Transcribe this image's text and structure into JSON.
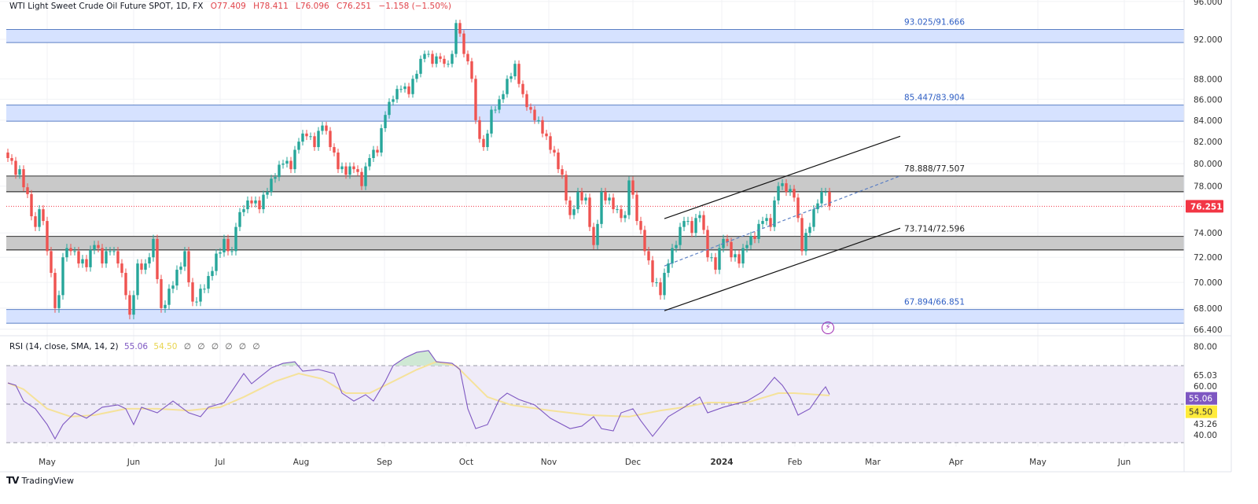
{
  "header": {
    "symbol": "WTI Light Sweet Crude Oil Future SPOT, 1D, FX",
    "open": "O77.409",
    "high": "H78.411",
    "low": "L76.096",
    "close": "C76.251",
    "change": "−1.158 (−1.50%)"
  },
  "rsi_header": {
    "label": "RSI (14, close, SMA, 14, 2)",
    "rsi": "55.06",
    "sma": "54.50",
    "placeholders": [
      "∅",
      "∅",
      "∅",
      "∅",
      "∅",
      "∅"
    ]
  },
  "branding": {
    "logo_mark": "TV",
    "name": "TradingView"
  },
  "colors": {
    "up": "#26a69a",
    "down": "#ef5350",
    "blue_zone": "#d6e2ff",
    "blue_zone_border": "#5b7fc4",
    "gray_zone": "#c9c9c9",
    "rsi": "#7e57c2",
    "rsi_sma": "#f5e29a",
    "rsi_band": "#efebf8",
    "current_price": "#f23645"
  },
  "chart_data": [
    {
      "type": "candlestick",
      "title": "",
      "y_scale": "log",
      "y_ticks": [
        "96.000",
        "92.000",
        "88.000",
        "86.000",
        "84.000",
        "82.000",
        "80.000",
        "78.000",
        "74.000",
        "72.000",
        "70.000",
        "68.000",
        "66.400"
      ],
      "x_ticks": [
        "May",
        "Jun",
        "Jul",
        "Aug",
        "Sep",
        "Oct",
        "Nov",
        "Dec",
        "2024",
        "Feb",
        "Mar",
        "Apr",
        "May",
        "Jun"
      ],
      "current_price": "76.251",
      "close_pivots": [
        [
          0,
          80.5
        ],
        [
          2,
          79
        ],
        [
          3,
          79.5
        ],
        [
          5,
          77.3
        ],
        [
          7,
          74.5
        ],
        [
          8,
          76
        ],
        [
          9,
          75
        ],
        [
          10,
          72.5
        ],
        [
          12,
          68
        ],
        [
          13,
          69
        ],
        [
          14,
          72
        ],
        [
          16,
          72.5
        ],
        [
          18,
          71.5
        ],
        [
          20,
          71.2
        ],
        [
          22,
          73
        ],
        [
          24,
          71.5
        ],
        [
          26,
          72.5
        ],
        [
          28,
          71.5
        ],
        [
          30,
          69
        ],
        [
          31,
          67.5
        ],
        [
          33,
          71.5
        ],
        [
          35,
          71.5
        ],
        [
          37,
          73.5
        ],
        [
          39,
          68
        ],
        [
          41,
          69.5
        ],
        [
          43,
          71
        ],
        [
          45,
          72.5
        ],
        [
          47,
          68.5
        ],
        [
          49,
          69.5
        ],
        [
          51,
          70.5
        ],
        [
          53,
          72.3
        ],
        [
          55,
          73.5
        ],
        [
          57,
          72.5
        ],
        [
          58,
          74.5
        ],
        [
          60,
          76
        ],
        [
          62,
          76.5
        ],
        [
          64,
          76
        ],
        [
          66,
          77.5
        ],
        [
          68,
          78.8
        ],
        [
          70,
          80
        ],
        [
          72,
          79.5
        ],
        [
          74,
          82
        ],
        [
          76,
          82.5
        ],
        [
          78,
          81.5
        ],
        [
          80,
          83.5
        ],
        [
          82,
          81.5
        ],
        [
          84,
          79.5
        ],
        [
          86,
          79
        ],
        [
          88,
          79.5
        ],
        [
          90,
          78
        ],
        [
          92,
          80.5
        ],
        [
          94,
          81
        ],
        [
          96,
          84.5
        ],
        [
          98,
          86
        ],
        [
          100,
          87
        ],
        [
          102,
          86.5
        ],
        [
          104,
          88.5
        ],
        [
          106,
          90.5
        ],
        [
          108,
          89.5
        ],
        [
          110,
          90
        ],
        [
          111,
          89.5
        ],
        [
          113,
          90.5
        ],
        [
          114,
          93.7
        ],
        [
          116,
          90.5
        ],
        [
          118,
          88
        ],
        [
          119,
          84
        ],
        [
          121,
          81.5
        ],
        [
          123,
          85
        ],
        [
          125,
          86
        ],
        [
          127,
          88
        ],
        [
          129,
          89.5
        ],
        [
          131,
          86.5
        ],
        [
          133,
          85
        ],
        [
          135,
          84
        ],
        [
          137,
          82.5
        ],
        [
          139,
          81
        ],
        [
          141,
          79
        ],
        [
          143,
          75.5
        ],
        [
          145,
          77.5
        ],
        [
          147,
          77
        ],
        [
          149,
          73
        ],
        [
          151,
          77.5
        ],
        [
          153,
          77
        ],
        [
          155,
          76
        ],
        [
          157,
          75.5
        ],
        [
          158,
          78.5
        ],
        [
          160,
          75
        ],
        [
          162,
          72.5
        ],
        [
          164,
          70
        ],
        [
          166,
          69
        ],
        [
          168,
          71.5
        ],
        [
          170,
          73
        ],
        [
          172,
          75
        ],
        [
          174,
          74
        ],
        [
          176,
          75.5
        ],
        [
          178,
          72
        ],
        [
          180,
          71
        ],
        [
          182,
          73.5
        ],
        [
          184,
          72
        ],
        [
          186,
          71.5
        ],
        [
          188,
          73
        ],
        [
          190,
          73.5
        ],
        [
          192,
          75
        ],
        [
          194,
          74.5
        ],
        [
          196,
          78
        ],
        [
          198,
          77.5
        ],
        [
          200,
          77
        ],
        [
          202,
          72.5
        ],
        [
          204,
          74.5
        ],
        [
          206,
          76.5
        ],
        [
          208,
          77.5
        ],
        [
          209,
          76.251
        ]
      ],
      "zones": [
        {
          "label": "93.025/91.666",
          "top": 93.025,
          "bottom": 91.666,
          "kind": "blue"
        },
        {
          "label": "85.447/83.904",
          "top": 85.447,
          "bottom": 83.904,
          "kind": "blue"
        },
        {
          "label": "78.888/77.507",
          "top": 78.888,
          "bottom": 77.507,
          "kind": "gray"
        },
        {
          "label": "73.714/72.596",
          "top": 73.714,
          "bottom": 72.596,
          "kind": "gray"
        },
        {
          "label": "67.894/66.851",
          "top": 67.894,
          "bottom": 66.851,
          "kind": "blue"
        }
      ],
      "channel": {
        "upper": [
          [
            167,
            75.2
          ],
          [
            227,
            82.5
          ]
        ],
        "lower": [
          [
            167,
            67.8
          ],
          [
            227,
            74.4
          ]
        ],
        "middle": [
          [
            167,
            71.3
          ],
          [
            227,
            78.9
          ]
        ]
      }
    },
    {
      "type": "line",
      "title": "RSI (14, close, SMA, 14, 2)",
      "ylim": [
        20,
        80
      ],
      "bands": [
        70,
        50,
        30
      ],
      "y_ticks": [
        "80.00",
        "60.00",
        "40.00"
      ],
      "value_labels": [
        "65.03",
        "43.26"
      ],
      "series": [
        {
          "name": "RSI",
          "value_label": "55.06",
          "points": [
            [
              0,
              61.0
            ],
            [
              2,
              59.8
            ],
            [
              4,
              51.6
            ],
            [
              7,
              47.6
            ],
            [
              10,
              39.4
            ],
            [
              12,
              32.0
            ],
            [
              14,
              39.4
            ],
            [
              17,
              45.5
            ],
            [
              20,
              42.7
            ],
            [
              24,
              48.4
            ],
            [
              28,
              49.6
            ],
            [
              30,
              47.6
            ],
            [
              32,
              39.4
            ],
            [
              34,
              48.4
            ],
            [
              38,
              45.5
            ],
            [
              42,
              51.6
            ],
            [
              46,
              45.5
            ],
            [
              49,
              43.5
            ],
            [
              51,
              48.4
            ],
            [
              55,
              50.8
            ],
            [
              58,
              59.8
            ],
            [
              60,
              65.9
            ],
            [
              62,
              60.6
            ],
            [
              64,
              63.9
            ],
            [
              67,
              68.8
            ],
            [
              70,
              71.2
            ],
            [
              73,
              72.0
            ],
            [
              75,
              67.1
            ],
            [
              79,
              68.0
            ],
            [
              83,
              65.9
            ],
            [
              85,
              55.7
            ],
            [
              88,
              51.6
            ],
            [
              91,
              54.9
            ],
            [
              93,
              51.6
            ],
            [
              96,
              61.8
            ],
            [
              98,
              70.0
            ],
            [
              101,
              74.1
            ],
            [
              104,
              76.9
            ],
            [
              107,
              77.8
            ],
            [
              109,
              72.0
            ],
            [
              113,
              71.2
            ],
            [
              115,
              68.0
            ],
            [
              117,
              47.6
            ],
            [
              119,
              37.3
            ],
            [
              122,
              39.4
            ],
            [
              125,
              52.4
            ],
            [
              127,
              55.7
            ],
            [
              130,
              52.4
            ],
            [
              134,
              49.6
            ],
            [
              138,
              42.7
            ],
            [
              143,
              37.3
            ],
            [
              146,
              38.6
            ],
            [
              149,
              43.5
            ],
            [
              151,
              37.3
            ],
            [
              154,
              36.1
            ],
            [
              156,
              45.5
            ],
            [
              159,
              47.6
            ],
            [
              161,
              41.4
            ],
            [
              164,
              33.3
            ],
            [
              168,
              43.5
            ],
            [
              172,
              48.4
            ],
            [
              176,
              53.7
            ],
            [
              178,
              45.5
            ],
            [
              182,
              48.4
            ],
            [
              188,
              51.6
            ],
            [
              192,
              56.5
            ],
            [
              195,
              63.9
            ],
            [
              197,
              59.8
            ],
            [
              199,
              53.7
            ],
            [
              201,
              44.3
            ],
            [
              204,
              47.6
            ],
            [
              207,
              56.5
            ],
            [
              208,
              59.0
            ],
            [
              209,
              55.06
            ]
          ]
        },
        {
          "name": "RSI-based MA",
          "value_label": "54.50",
          "points": [
            [
              0,
              61.0
            ],
            [
              4,
              57.7
            ],
            [
              10,
              47.6
            ],
            [
              16,
              43.5
            ],
            [
              22,
              44.3
            ],
            [
              30,
              47.6
            ],
            [
              38,
              47.6
            ],
            [
              46,
              46.7
            ],
            [
              54,
              48.4
            ],
            [
              60,
              53.7
            ],
            [
              68,
              61.8
            ],
            [
              74,
              65.9
            ],
            [
              80,
              63.1
            ],
            [
              86,
              55.7
            ],
            [
              92,
              55.7
            ],
            [
              98,
              61.8
            ],
            [
              104,
              67.9
            ],
            [
              109,
              72.0
            ],
            [
              114,
              69.9
            ],
            [
              118,
              61.8
            ],
            [
              122,
              53.7
            ],
            [
              128,
              49.6
            ],
            [
              138,
              46.7
            ],
            [
              148,
              44.3
            ],
            [
              158,
              43.5
            ],
            [
              166,
              46.7
            ],
            [
              172,
              48.4
            ],
            [
              178,
              50.8
            ],
            [
              188,
              50.8
            ],
            [
              196,
              55.7
            ],
            [
              200,
              55.7
            ],
            [
              209,
              54.5
            ]
          ]
        }
      ]
    }
  ]
}
